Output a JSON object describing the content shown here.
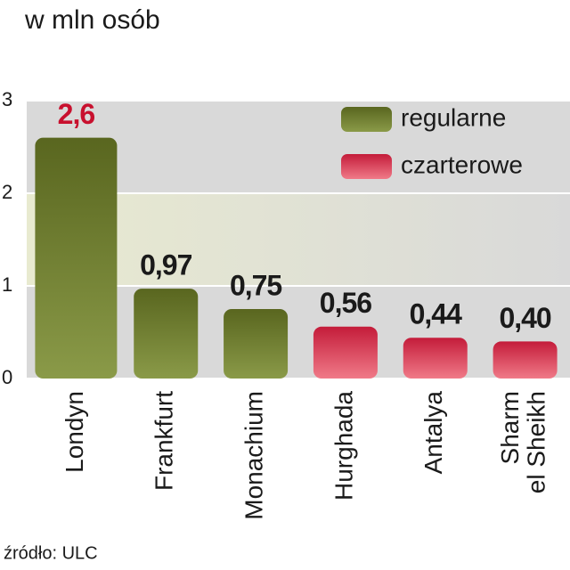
{
  "chart_data": {
    "type": "bar",
    "title": "w mln osób",
    "source": "źródło: ULC",
    "categories": [
      "Londyn",
      "Frankfurt",
      "Monachium",
      "Hurghada",
      "Antalya",
      "Sharm\nel Sheikh"
    ],
    "series": [
      {
        "name": "regularne",
        "color": "#6b7a2e",
        "values": [
          2.6,
          0.97,
          0.75,
          null,
          null,
          null
        ],
        "value_labels": [
          "2,6",
          "0,97",
          "0,75",
          null,
          null,
          null
        ]
      },
      {
        "name": "czarterowe",
        "color": "#d42a45",
        "values": [
          null,
          null,
          null,
          0.56,
          0.44,
          0.4
        ],
        "value_labels": [
          null,
          null,
          null,
          "0,56",
          "0,44",
          "0,40"
        ]
      }
    ],
    "ylim": [
      0,
      3
    ],
    "yticks": [
      0,
      1,
      2,
      3
    ],
    "grid": true,
    "legend": "top-right"
  }
}
